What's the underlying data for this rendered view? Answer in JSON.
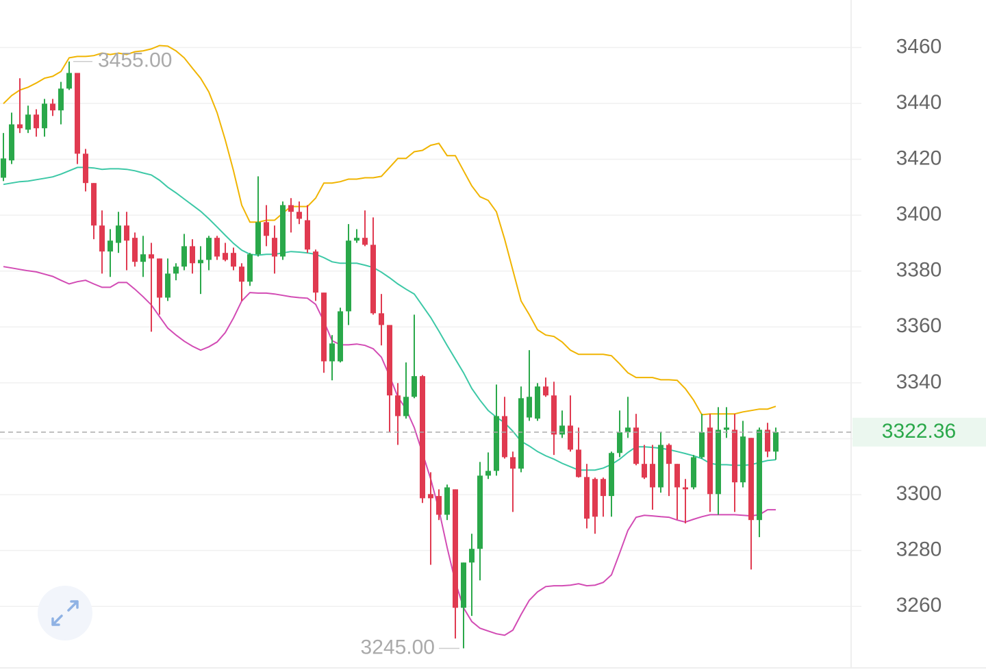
{
  "chart_data": {
    "type": "candlestick",
    "ylim": [
      3238,
      3477
    ],
    "yticks": [
      3260,
      3280,
      3300,
      3320,
      3340,
      3360,
      3380,
      3400,
      3420,
      3440,
      3460
    ],
    "grid": true,
    "up_color": "#2aa84a",
    "down_color": "#e03a50",
    "open": [
      3413.4,
      3419.6,
      3432.5,
      3430.6,
      3436,
      3431.1,
      3439.9,
      3437.5,
      3445.3,
      3450.9,
      3422,
      3411.5,
      3396.3,
      3387,
      3390.1,
      3396.3,
      3391.9,
      3383.3,
      3386,
      3384.5,
      3370.5,
      3379.1,
      3381.6,
      3388.9,
      3382.8,
      3384,
      3391.9,
      3386.5,
      3386.5,
      3381.6,
      3376.2,
      3386,
      3397.5,
      3391.9,
      3385.2,
      3403.6,
      3401.2,
      3398.2,
      3387,
      3372.3,
      3347.7,
      3347.7,
      3365.6,
      3390.9,
      3391.9,
      3389.4,
      3364.9,
      3360.7,
      3335.5,
      3328.1,
      3335,
      3342.4,
      3300.2,
      3299.5,
      3292.8,
      3301.9,
      3259.5,
      3275.7,
      3280.6,
      3306.8,
      3308.5,
      3328.1,
      3313.4,
      3309.3,
      3327.6,
      3327.2,
      3338.7,
      3335.5,
      3321.5,
      3324.7,
      3316.1,
      3306.3,
      3305.6,
      3305.6,
      3299.5,
      3314.9,
      3322.3,
      3324,
      3311,
      3311,
      3302.6,
      3317.8,
      3311,
      3302.6,
      3302.6,
      3313.4,
      3324,
      3300.2,
      3323.2,
      3323.2,
      3304.4,
      3320.3,
      3290.9,
      3323.2,
      3315.4
    ],
    "high": [
      3429.4,
      3436.7,
      3449,
      3439.2,
      3437.9,
      3441.6,
      3441.6,
      3447.7,
      3455,
      3450.9,
      3423.7,
      3411.5,
      3401.7,
      3395,
      3401.2,
      3401.2,
      3393.8,
      3392.6,
      3390.1,
      3384.5,
      3384.5,
      3382.8,
      3393.3,
      3391.4,
      3388.9,
      3392.6,
      3392.6,
      3390.1,
      3388.4,
      3382.8,
      3386.5,
      3413.9,
      3403.6,
      3396.3,
      3404.9,
      3406.1,
      3404.9,
      3403.6,
      3387.7,
      3372.3,
      3357.1,
      3366.9,
      3396.8,
      3395,
      3401.7,
      3399.2,
      3371.8,
      3360.7,
      3339.9,
      3347.3,
      3364.4,
      3342.8,
      3308,
      3301.9,
      3303.6,
      3301.9,
      3275.7,
      3286,
      3311.7,
      3315.1,
      3339.4,
      3335,
      3315.4,
      3338.7,
      3351.7,
      3339.9,
      3341.9,
      3340.4,
      3330.1,
      3335.5,
      3324,
      3311,
      3306.1,
      3306.1,
      3315.4,
      3330.1,
      3335,
      3328.9,
      3317.8,
      3317.8,
      3322.3,
      3318.3,
      3311,
      3305.6,
      3314.2,
      3328.9,
      3328.9,
      3331.3,
      3331.3,
      3328.9,
      3326.4,
      3320.3,
      3324,
      3325.7,
      3324
    ],
    "low": [
      3412.2,
      3418.3,
      3429.4,
      3429.4,
      3428.1,
      3428.1,
      3435.5,
      3432.5,
      3444.8,
      3418.3,
      3408.5,
      3391.4,
      3379.1,
      3377.9,
      3386.5,
      3380.3,
      3381.6,
      3377.9,
      3358.3,
      3364.4,
      3369.3,
      3376.7,
      3380.3,
      3379.1,
      3371.8,
      3380.3,
      3384,
      3383.5,
      3380.3,
      3369.3,
      3374.7,
      3385.2,
      3388.9,
      3379.1,
      3384,
      3393.8,
      3396.8,
      3386.5,
      3369.3,
      3343.6,
      3340.9,
      3347.3,
      3360.7,
      3390.1,
      3388.9,
      3364.4,
      3353.4,
      3322.3,
      3317.8,
      3327.2,
      3334.5,
      3297,
      3274.9,
      3290.9,
      3290.9,
      3248.5,
      3245,
      3256.6,
      3269.3,
      3305.6,
      3306.8,
      3312.9,
      3293.8,
      3308,
      3326.4,
      3326.4,
      3335,
      3314.2,
      3320.3,
      3315.4,
      3306.1,
      3287.9,
      3286,
      3292.1,
      3292.1,
      3313.4,
      3320.3,
      3310.5,
      3305.6,
      3294.6,
      3300.7,
      3299.5,
      3291.1,
      3289.7,
      3301.9,
      3312.9,
      3293.8,
      3292.8,
      3320.3,
      3293.8,
      3302.6,
      3273.2,
      3284.8,
      3313.4,
      3312.5
    ],
    "close": [
      3420.3,
      3432.5,
      3431.1,
      3436,
      3431.1,
      3439.9,
      3437.5,
      3445.3,
      3450.9,
      3422,
      3411.5,
      3396.3,
      3387,
      3390.9,
      3396.3,
      3390.9,
      3383.3,
      3386,
      3384.5,
      3370.5,
      3379.1,
      3381.6,
      3388.9,
      3382.8,
      3384,
      3391.9,
      3385.2,
      3384,
      3381.6,
      3376.2,
      3386,
      3397.5,
      3392.6,
      3385.2,
      3403.6,
      3401.2,
      3398.7,
      3387.7,
      3372.3,
      3347.7,
      3354.1,
      3365.6,
      3390.9,
      3391.9,
      3389.4,
      3364.9,
      3360.7,
      3335.5,
      3328.1,
      3335,
      3342.4,
      3298.7,
      3298.7,
      3292.8,
      3302.6,
      3259.5,
      3275.7,
      3280.6,
      3306.8,
      3308.5,
      3328.1,
      3313.4,
      3309.3,
      3334.5,
      3335,
      3338.7,
      3335.5,
      3321.5,
      3324.7,
      3316.1,
      3306.3,
      3291.4,
      3292.1,
      3299.5,
      3314.9,
      3322.3,
      3324,
      3311,
      3306.1,
      3302.6,
      3317.8,
      3311,
      3302.6,
      3301.9,
      3313.4,
      3322.3,
      3300.2,
      3323.2,
      3324,
      3304.4,
      3320.8,
      3290.9,
      3323.2,
      3315.4,
      3322.36
    ],
    "series": [
      {
        "color": "#f0b400",
        "values": [
          3439.9,
          3442.8,
          3444.8,
          3445.8,
          3447.3,
          3449,
          3449.7,
          3451.4,
          3456.3,
          3456.8,
          3456.8,
          3457.1,
          3458,
          3457.5,
          3458,
          3457.5,
          3458.5,
          3458.8,
          3459.5,
          3460.7,
          3460.5,
          3458.8,
          3456.3,
          3452.6,
          3449,
          3444.1,
          3436.7,
          3426.9,
          3415.9,
          3403.6,
          3397.5,
          3397.5,
          3398.2,
          3398.2,
          3400.7,
          3403.1,
          3403.1,
          3403.1,
          3406.1,
          3411.5,
          3411.5,
          3412,
          3412.9,
          3412.9,
          3413.4,
          3413.4,
          3413.9,
          3417.1,
          3420.3,
          3420.3,
          3422.7,
          3423.2,
          3425,
          3425.7,
          3421.3,
          3421.3,
          3415.9,
          3410.5,
          3406.6,
          3405.3,
          3401.2,
          3391.4,
          3380.3,
          3369.3,
          3364.4,
          3359,
          3357.1,
          3356.6,
          3354.6,
          3351.7,
          3350.2,
          3350.2,
          3350.2,
          3350.2,
          3349.7,
          3346.8,
          3343.6,
          3341.9,
          3341.9,
          3341.9,
          3341.1,
          3341.1,
          3340.9,
          3337.9,
          3333.8,
          3328.6,
          3328.9,
          3328.9,
          3328.9,
          3328.9,
          3329.6,
          3330.1,
          3330.6,
          3330.6,
          3331.6
        ]
      },
      {
        "color": "#3cc8a6",
        "values": [
          3411,
          3411.5,
          3412,
          3412.2,
          3412.7,
          3413.2,
          3413.7,
          3414.7,
          3415.9,
          3417.1,
          3417.1,
          3416.9,
          3416.4,
          3416.6,
          3416.6,
          3416.4,
          3415.9,
          3415.1,
          3414.4,
          3412.5,
          3410,
          3408,
          3405.8,
          3403.6,
          3401.4,
          3398.7,
          3395.8,
          3392.8,
          3389.9,
          3387.5,
          3386,
          3385.7,
          3386,
          3386,
          3386.5,
          3387,
          3386.8,
          3386.5,
          3386,
          3384.8,
          3383.3,
          3382.8,
          3382.8,
          3382.8,
          3382.1,
          3381.3,
          3379.6,
          3377.6,
          3375.4,
          3373.5,
          3371.8,
          3367.6,
          3363.4,
          3358.5,
          3353.4,
          3348.5,
          3343.6,
          3338,
          3333.8,
          3330.1,
          3327.7,
          3325.7,
          3322.7,
          3319.1,
          3317.4,
          3315.4,
          3313.9,
          3312.7,
          3311.2,
          3310,
          3308.8,
          3308.8,
          3308.8,
          3309.5,
          3310.8,
          3312.7,
          3315.1,
          3317.1,
          3317.1,
          3316.9,
          3316.6,
          3316.1,
          3315.4,
          3314.7,
          3313.9,
          3312.9,
          3311.2,
          3310.7,
          3310.7,
          3310.5,
          3310.5,
          3310.7,
          3311.5,
          3312.2,
          3312.5
        ]
      },
      {
        "color": "#d24bb4",
        "values": [
          3381.6,
          3381.1,
          3380.6,
          3380.1,
          3379.7,
          3378.9,
          3378.1,
          3376.7,
          3375.4,
          3376.2,
          3376.7,
          3375.4,
          3374.2,
          3374.2,
          3375.9,
          3375.9,
          3373.5,
          3370.8,
          3367.9,
          3363.7,
          3359.6,
          3357.1,
          3354.9,
          3353.1,
          3351.7,
          3352.9,
          3354.6,
          3358,
          3363.2,
          3369.3,
          3372.3,
          3372.1,
          3372.1,
          3371.8,
          3371.3,
          3370.8,
          3370.5,
          3370.3,
          3368.1,
          3362,
          3355.1,
          3353.6,
          3353.6,
          3353.9,
          3353.4,
          3352.2,
          3349.2,
          3342.4,
          3335,
          3330.6,
          3324,
          3314.9,
          3305.6,
          3294.6,
          3281.1,
          3268.8,
          3259.5,
          3254.6,
          3252.2,
          3251.2,
          3250.2,
          3249.7,
          3251.5,
          3257.1,
          3262.2,
          3265.2,
          3267.1,
          3267.4,
          3267.4,
          3267.6,
          3268.1,
          3267.4,
          3267.6,
          3268.6,
          3271.3,
          3279.1,
          3287.2,
          3291.9,
          3292.6,
          3292.4,
          3292.1,
          3291.9,
          3290.9,
          3290.2,
          3291.2,
          3292.1,
          3292.8,
          3292.8,
          3292.8,
          3292.8,
          3292.6,
          3292.4,
          3292.8,
          3294.6,
          3294.6
        ]
      }
    ],
    "last_price": 3322.36,
    "max_annotation": {
      "value": 3455,
      "label": "3455.00"
    },
    "min_annotation": {
      "value": 3245,
      "label": "3245.00"
    }
  }
}
